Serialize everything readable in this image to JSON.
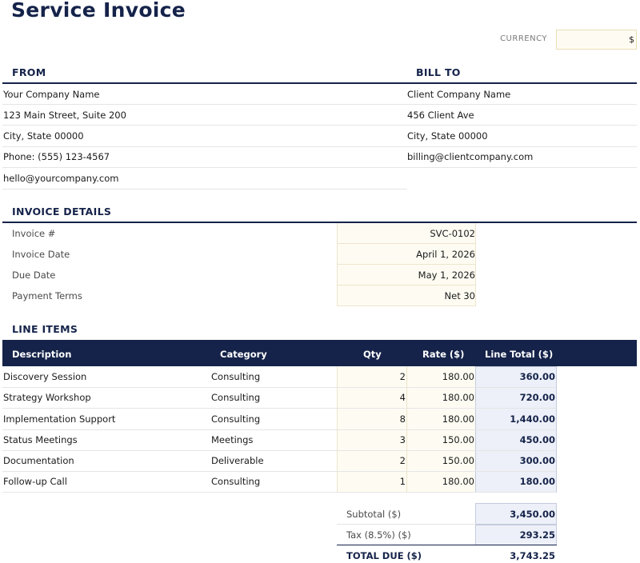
{
  "title": "Service Invoice",
  "currency": {
    "label": "CURRENCY",
    "value": "$"
  },
  "from": {
    "heading": "FROM",
    "lines": [
      "Your Company Name",
      "123 Main Street, Suite 200",
      "City, State 00000",
      "Phone: (555) 123-4567",
      "hello@yourcompany.com"
    ]
  },
  "bill_to": {
    "heading": "BILL TO",
    "lines": [
      "Client Company Name",
      "456 Client Ave",
      "City, State 00000",
      "billing@clientcompany.com"
    ]
  },
  "invoice_details": {
    "heading": "INVOICE DETAILS",
    "rows": [
      {
        "label": "Invoice #",
        "value": "SVC-0102"
      },
      {
        "label": "Invoice Date",
        "value": "April 1, 2026"
      },
      {
        "label": "Due Date",
        "value": "May 1, 2026"
      },
      {
        "label": "Payment Terms",
        "value": "Net 30"
      }
    ]
  },
  "line_items": {
    "heading": "LINE ITEMS",
    "columns": [
      "Description",
      "Category",
      "Qty",
      "Rate ($)",
      "Line Total ($)"
    ],
    "rows": [
      {
        "description": "Discovery Session",
        "category": "Consulting",
        "qty": "2",
        "rate": "180.00",
        "total": "360.00"
      },
      {
        "description": "Strategy Workshop",
        "category": "Consulting",
        "qty": "4",
        "rate": "180.00",
        "total": "720.00"
      },
      {
        "description": "Implementation Support",
        "category": "Consulting",
        "qty": "8",
        "rate": "180.00",
        "total": "1,440.00"
      },
      {
        "description": "Status Meetings",
        "category": "Meetings",
        "qty": "3",
        "rate": "150.00",
        "total": "450.00"
      },
      {
        "description": "Documentation",
        "category": "Deliverable",
        "qty": "2",
        "rate": "150.00",
        "total": "300.00"
      },
      {
        "description": "Follow-up Call",
        "category": "Consulting",
        "qty": "1",
        "rate": "180.00",
        "total": "180.00"
      }
    ]
  },
  "totals": {
    "subtotal_label": "Subtotal ($)",
    "subtotal": "3,450.00",
    "tax_label": "Tax (8.5%) ($)",
    "tax": "293.25",
    "total_label": "TOTAL DUE ($)",
    "total": "3,743.25"
  }
}
